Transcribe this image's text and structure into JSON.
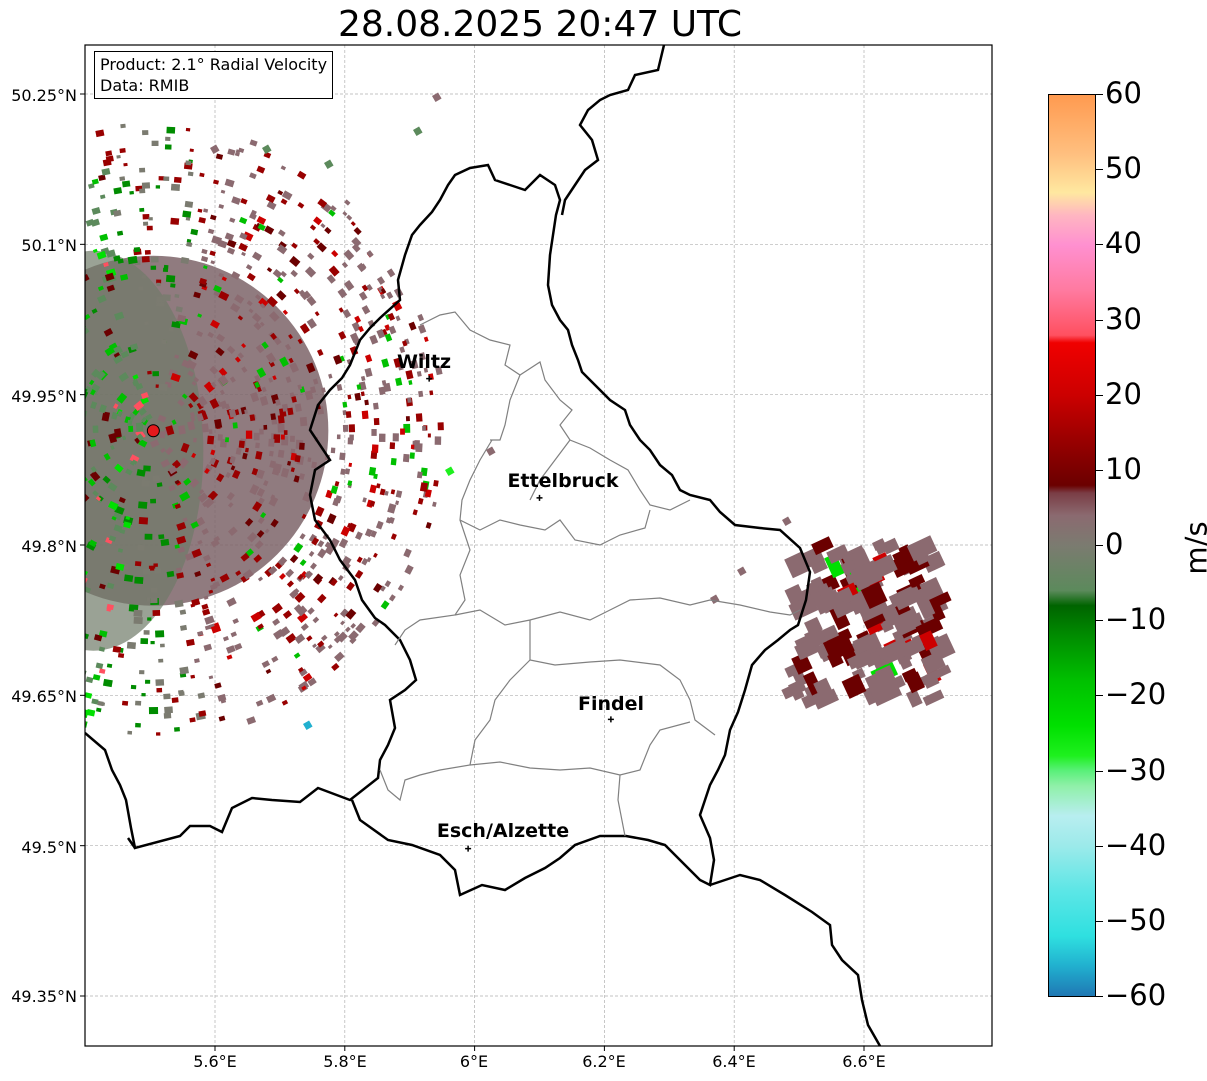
{
  "title": "28.08.2025 20:47 UTC",
  "info": {
    "product": "Product: 2.1° Radial Velocity",
    "data": "Data: RMIB"
  },
  "map": {
    "lat_ticks": [
      "50.25°N",
      "50.1°N",
      "49.95°N",
      "49.8°N",
      "49.65°N",
      "49.5°N",
      "49.35°N"
    ],
    "lon_ticks": [
      "5.6°E",
      "5.8°E",
      "6°E",
      "6.2°E",
      "6.4°E",
      "6.6°E"
    ],
    "cities": [
      {
        "name": "Wiltz",
        "lon": 5.93,
        "lat": 49.966
      },
      {
        "name": "Ettelbruck",
        "lon": 6.1,
        "lat": 49.847
      },
      {
        "name": "Findel",
        "lon": 6.21,
        "lat": 49.626
      },
      {
        "name": "Esch/Alzette",
        "lon": 5.99,
        "lat": 49.497
      }
    ],
    "radar_site": {
      "lon": 5.505,
      "lat": 49.914,
      "color": "#e41a1c"
    }
  },
  "colorbar": {
    "unit": "m/s",
    "ticks": [
      "60",
      "50",
      "40",
      "30",
      "20",
      "10",
      "0",
      "−10",
      "−20",
      "−30",
      "−40",
      "−50",
      "−60"
    ],
    "min": -60,
    "max": 60,
    "stops": [
      {
        "v": -60,
        "color": "#1f78b4"
      },
      {
        "v": -56,
        "color": "#21b0cf"
      },
      {
        "v": -52,
        "color": "#2fe0e0"
      },
      {
        "v": -46,
        "color": "#5ce6e6"
      },
      {
        "v": -40,
        "color": "#9ceaea"
      },
      {
        "v": -36,
        "color": "#b8eef0"
      },
      {
        "v": -32,
        "color": "#8ff0a8"
      },
      {
        "v": -30,
        "color": "#5af07a"
      },
      {
        "v": -28,
        "color": "#1ef01e"
      },
      {
        "v": -24,
        "color": "#00e000"
      },
      {
        "v": -18,
        "color": "#00c000"
      },
      {
        "v": -12,
        "color": "#008c00"
      },
      {
        "v": -8,
        "color": "#006400"
      },
      {
        "v": -6,
        "color": "#5c8a5c"
      },
      {
        "v": 0,
        "color": "#7b7b70"
      },
      {
        "v": 4,
        "color": "#8b6a70"
      },
      {
        "v": 7,
        "color": "#7a3d45"
      },
      {
        "v": 8,
        "color": "#6b0000"
      },
      {
        "v": 14,
        "color": "#990000"
      },
      {
        "v": 20,
        "color": "#cc0000"
      },
      {
        "v": 27,
        "color": "#f00000"
      },
      {
        "v": 28,
        "color": "#ff5060"
      },
      {
        "v": 34,
        "color": "#ff7aa0"
      },
      {
        "v": 40,
        "color": "#ff90d0"
      },
      {
        "v": 44,
        "color": "#ffb6c1"
      },
      {
        "v": 47,
        "color": "#ffe8a0"
      },
      {
        "v": 52,
        "color": "#ffc080"
      },
      {
        "v": 60,
        "color": "#ff9a50"
      }
    ]
  }
}
